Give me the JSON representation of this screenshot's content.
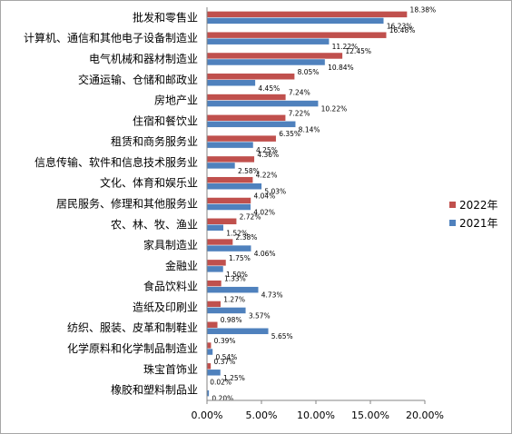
{
  "chart_data": {
    "type": "bar",
    "orientation": "horizontal",
    "categories": [
      "批发和零售业",
      "计算机、通信和其他电子设备制造业",
      "电气机械和器材制造业",
      "交通运输、仓储和邮政业",
      "房地产业",
      "住宿和餐饮业",
      "租赁和商务服务业",
      "信息传输、软件和信息技术服务业",
      "文化、体育和娱乐业",
      "居民服务、修理和其他服务业",
      "农、林、牧、渔业",
      "家具制造业",
      "金融业",
      "食品饮料业",
      "造纸及印刷业",
      "纺织、服装、皮革和制鞋业",
      "化学原料和化学制品制造业",
      "珠宝首饰业",
      "橡胶和塑料制品业"
    ],
    "series": [
      {
        "name": "2022年",
        "color": "#c0504d",
        "values": [
          18.38,
          16.48,
          12.45,
          8.05,
          7.24,
          7.22,
          6.35,
          4.36,
          4.22,
          4.04,
          2.72,
          2.38,
          1.75,
          1.33,
          1.27,
          0.98,
          0.39,
          0.37,
          0.02
        ],
        "labels": [
          "18.38%",
          "16.48%",
          "12.45%",
          "8.05%",
          "7.24%",
          "7.22%",
          "6.35%",
          "4.36%",
          "4.22%",
          "4.04%",
          "2.72%",
          "2.38%",
          "1.75%",
          "1.33%",
          "1.27%",
          "0.98%",
          "0.39%",
          "0.37%",
          "0.02%"
        ]
      },
      {
        "name": "2021年",
        "color": "#4f81bd",
        "values": [
          16.23,
          11.22,
          10.84,
          4.45,
          10.22,
          8.14,
          4.25,
          2.58,
          5.03,
          4.02,
          1.52,
          4.06,
          1.5,
          4.73,
          3.57,
          5.65,
          0.54,
          1.25,
          0.2
        ],
        "labels": [
          "16.23%",
          "11.22%",
          "10.84%",
          "4.45%",
          "10.22%",
          "8.14%",
          "4.25%",
          "2.58%",
          "5.03%",
          "4.02%",
          "1.52%",
          "4.06%",
          "1.50%",
          "4.73%",
          "3.57%",
          "5.65%",
          "0.54%",
          "1.25%",
          "0.20%"
        ]
      }
    ],
    "xlim": [
      0,
      20
    ],
    "xticks": [
      0,
      5,
      10,
      15,
      20
    ],
    "xtick_labels": [
      "0.00%",
      "5.00%",
      "10.00%",
      "15.00%",
      "20.00%"
    ],
    "grid": false,
    "legend_position": "right"
  }
}
